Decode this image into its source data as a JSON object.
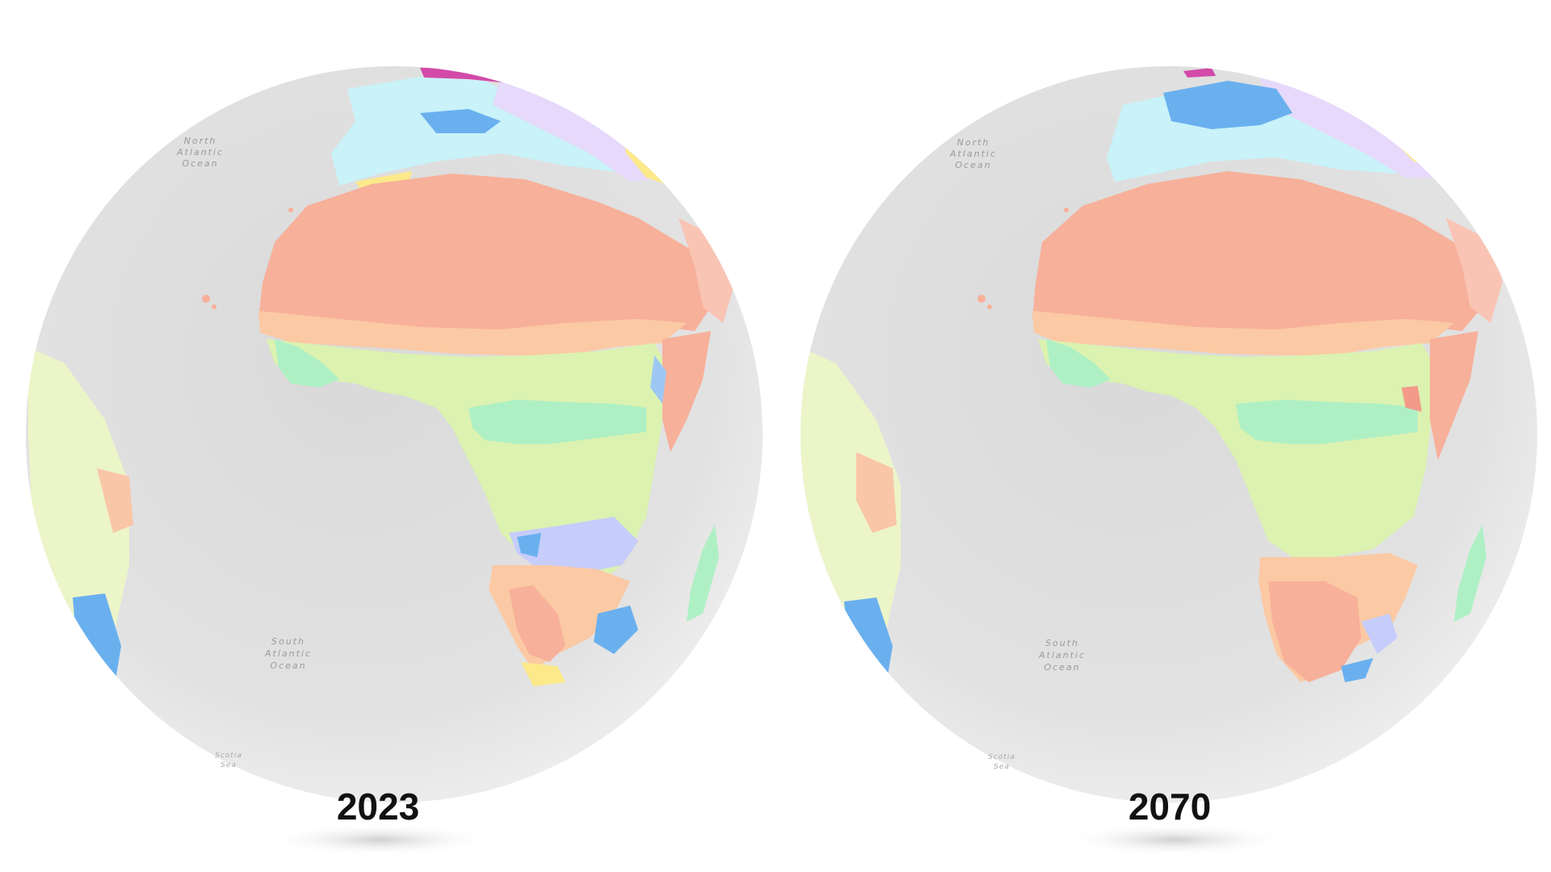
{
  "maps": [
    {
      "year": "2023",
      "labels": {
        "north_atlantic": [
          "North",
          "Atlantic",
          "Ocean"
        ],
        "south_atlantic": [
          "South",
          "Atlantic",
          "Ocean"
        ],
        "scotia": [
          "Scotia",
          "Sea"
        ]
      }
    },
    {
      "year": "2070",
      "labels": {
        "north_atlantic": [
          "North",
          "Atlantic",
          "Ocean"
        ],
        "south_atlantic": [
          "South",
          "Atlantic",
          "Ocean"
        ],
        "scotia": [
          "Scotia",
          "Sea"
        ]
      }
    }
  ],
  "colors": {
    "ocean": "#e4e4e4",
    "hot_desert": "#f7b09a",
    "hot_steppe": "#fbc9a4",
    "tropical_savanna": "#dcf2b0",
    "tropical_monsoon": "#aef0c4",
    "humid_subtropical": "#c6cdfb",
    "temperate_oceanic": "#6ab0ef",
    "mediterranean": "#fce98a",
    "continental": "#e6d9fb",
    "cold_wet": "#c9f2f9",
    "polar_highland": "#d34aa8"
  }
}
